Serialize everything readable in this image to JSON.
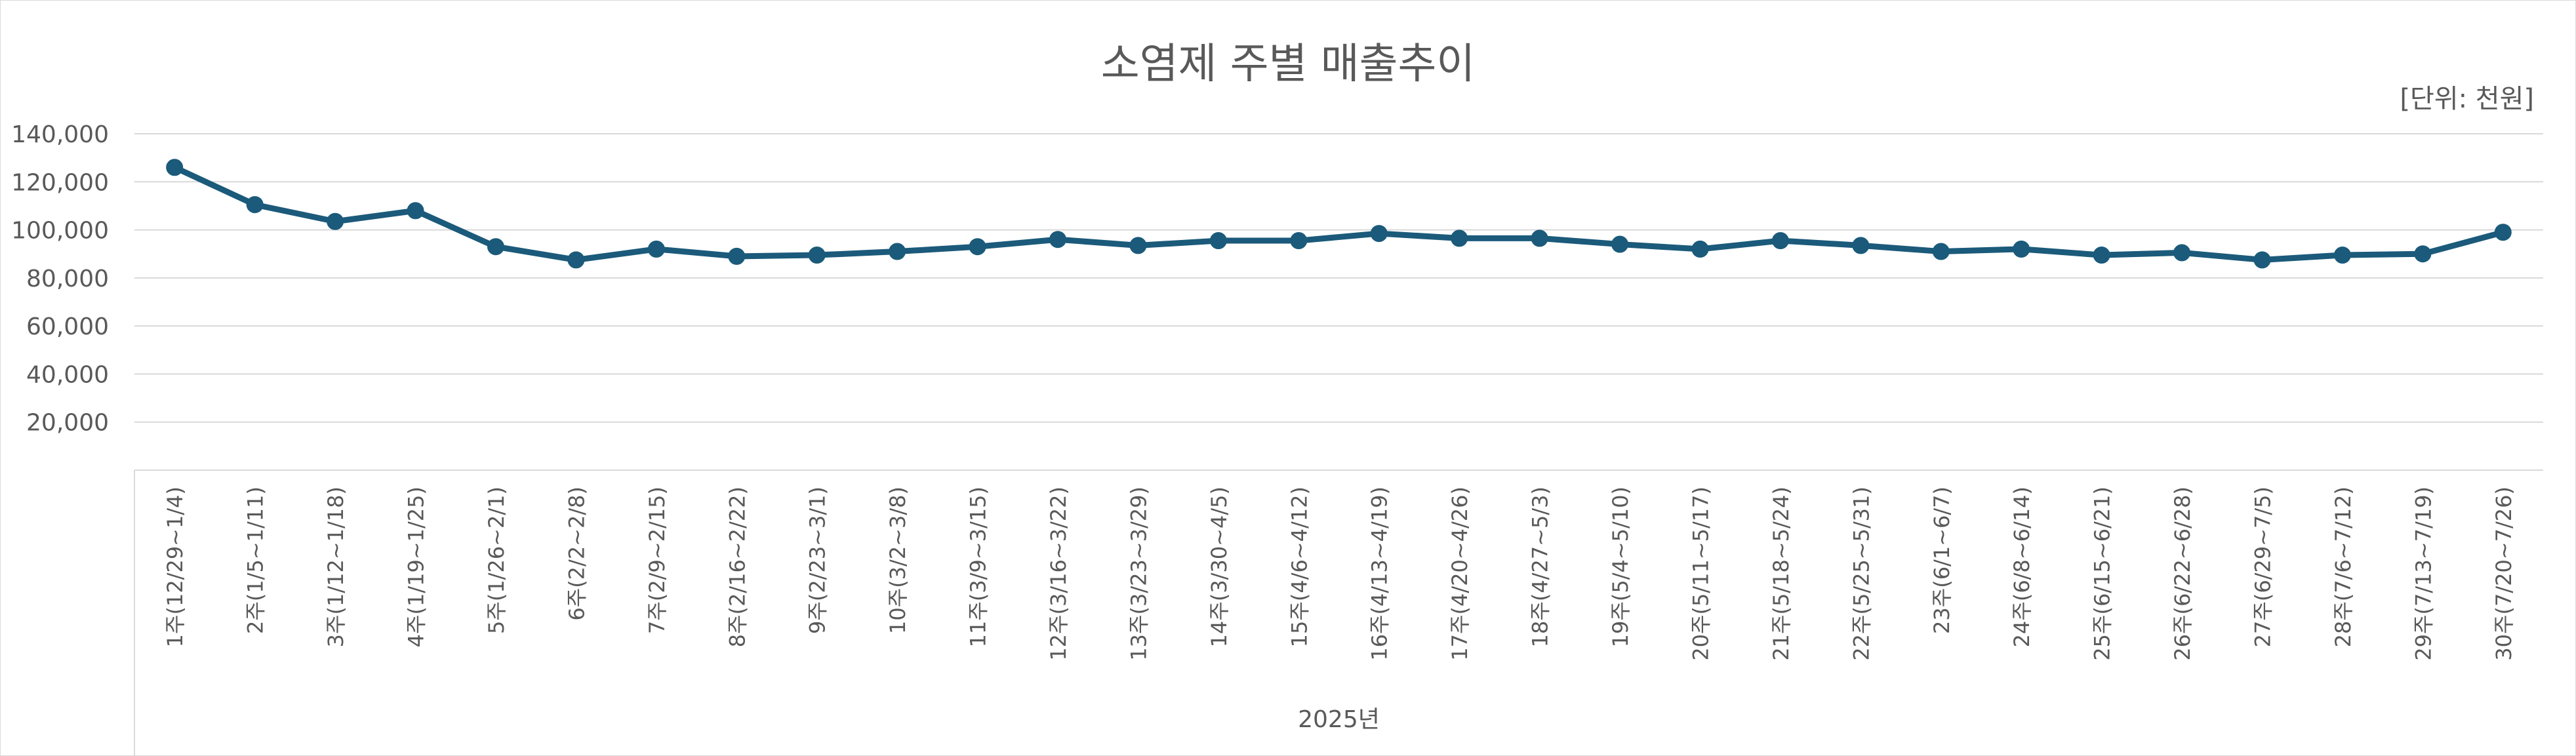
{
  "chart_data": {
    "type": "line",
    "title": "소염제 주별 매출추이",
    "unit_label": "[단위: 천원]",
    "x_group_label": "2025년",
    "xlabel": "",
    "ylabel": "",
    "ylim": [
      0,
      140000
    ],
    "y_ticks": [
      0,
      20000,
      40000,
      60000,
      80000,
      100000,
      120000,
      140000
    ],
    "y_tick_labels": [
      "",
      "20,000",
      "40,000",
      "60,000",
      "80,000",
      "100,000",
      "120,000",
      "140,000"
    ],
    "grid": true,
    "legend": "none",
    "categories": [
      "1주(12/29~1/4)",
      "2주(1/5~1/11)",
      "3주(1/12~1/18)",
      "4주(1/19~1/25)",
      "5주(1/26~2/1)",
      "6주(2/2~2/8)",
      "7주(2/9~2/15)",
      "8주(2/16~2/22)",
      "9주(2/23~3/1)",
      "10주(3/2~3/8)",
      "11주(3/9~3/15)",
      "12주(3/16~3/22)",
      "13주(3/23~3/29)",
      "14주(3/30~4/5)",
      "15주(4/6~4/12)",
      "16주(4/13~4/19)",
      "17주(4/20~4/26)",
      "18주(4/27~5/3)",
      "19주(5/4~5/10)",
      "20주(5/11~5/17)",
      "21주(5/18~5/24)",
      "22주(5/25~5/31)",
      "23주(6/1~6/7)",
      "24주(6/8~6/14)",
      "25주(6/15~6/21)",
      "26주(6/22~6/28)",
      "27주(6/29~7/5)",
      "28주(7/6~7/12)",
      "29주(7/13~7/19)",
      "30주(7/20~7/26)"
    ],
    "series": [
      {
        "color": "#1b5a7a",
        "values": [
          126000,
          110500,
          103500,
          108000,
          93000,
          87500,
          92000,
          89000,
          89500,
          91000,
          93000,
          96000,
          93500,
          95500,
          95500,
          98500,
          96500,
          96500,
          94000,
          92000,
          95500,
          93500,
          91000,
          92000,
          89500,
          90500,
          87500,
          89500,
          90000,
          99000
        ]
      }
    ]
  }
}
